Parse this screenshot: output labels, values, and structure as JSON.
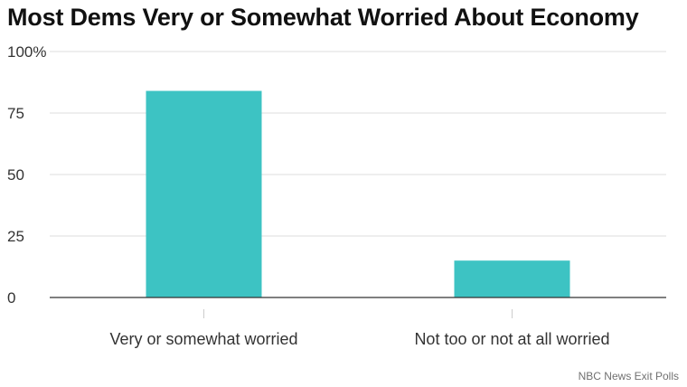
{
  "title": "Most Dems Very or Somewhat Worried About Economy",
  "source": "NBC News Exit Polls",
  "colors": {
    "bar": "#3dc3c3",
    "grid": "#dddddd",
    "axis": "#333333",
    "text": "#333333"
  },
  "chart_data": {
    "type": "bar",
    "title": "Most Dems Very or Somewhat Worried About Economy",
    "categories": [
      "Very or somewhat worried",
      "Not too or not at all worried"
    ],
    "values": [
      84,
      15
    ],
    "xlabel": "",
    "ylabel": "",
    "ylim": [
      0,
      100
    ],
    "yticks": [
      0,
      25,
      50,
      75,
      100
    ],
    "ytick_labels": [
      "0",
      "25",
      "50",
      "75",
      "100%"
    ],
    "grid": true,
    "legend": "none"
  }
}
